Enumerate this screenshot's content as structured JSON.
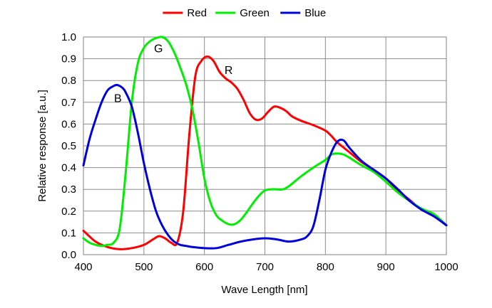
{
  "chart_data": {
    "type": "line",
    "title": "",
    "xlabel": "Wave Length [nm]",
    "ylabel": "Relative response [a.u.]",
    "xlim": [
      400,
      1000
    ],
    "ylim": [
      0.0,
      1.0
    ],
    "xticks": [
      400,
      500,
      600,
      700,
      800,
      900,
      1000
    ],
    "yticks": [
      0.0,
      0.1,
      0.2,
      0.3,
      0.4,
      0.5,
      0.6,
      0.7,
      0.8,
      0.9,
      1.0
    ],
    "xtick_labels": [
      "400",
      "500",
      "600",
      "700",
      "800",
      "900",
      "1000"
    ],
    "ytick_labels": [
      "0.0",
      "0.1",
      "0.2",
      "0.3",
      "0.4",
      "0.5",
      "0.6",
      "0.7",
      "0.8",
      "0.9",
      "1.0"
    ],
    "grid": true,
    "legend_position": "top-center",
    "series": [
      {
        "name": "Red",
        "color": "#ff0000",
        "label": "R",
        "label_at": [
          640,
          0.85
        ],
        "x": [
          400,
          420,
          440,
          460,
          480,
          500,
          515,
          525,
          535,
          545,
          555,
          565,
          575,
          585,
          595,
          605,
          615,
          625,
          635,
          645,
          655,
          665,
          675,
          685,
          695,
          705,
          715,
          725,
          735,
          745,
          760,
          780,
          800,
          810,
          820,
          840,
          860,
          880,
          900,
          920,
          940,
          960,
          980,
          1000
        ],
        "y": [
          0.11,
          0.06,
          0.035,
          0.025,
          0.03,
          0.045,
          0.07,
          0.085,
          0.075,
          0.055,
          0.055,
          0.2,
          0.55,
          0.82,
          0.89,
          0.91,
          0.89,
          0.84,
          0.81,
          0.79,
          0.76,
          0.71,
          0.65,
          0.62,
          0.625,
          0.655,
          0.68,
          0.675,
          0.66,
          0.635,
          0.615,
          0.595,
          0.57,
          0.545,
          0.515,
          0.47,
          0.425,
          0.39,
          0.35,
          0.295,
          0.25,
          0.205,
          0.18,
          0.135
        ]
      },
      {
        "name": "Green",
        "color": "#00ee00",
        "label": "G",
        "label_at": [
          524,
          0.95
        ],
        "x": [
          400,
          410,
          420,
          430,
          440,
          450,
          460,
          470,
          480,
          490,
          500,
          510,
          520,
          530,
          540,
          550,
          560,
          570,
          580,
          590,
          600,
          610,
          620,
          630,
          640,
          650,
          660,
          670,
          680,
          690,
          700,
          710,
          720,
          730,
          740,
          760,
          780,
          800,
          810,
          820,
          830,
          840,
          860,
          880,
          900,
          920,
          940,
          960,
          980,
          1000
        ],
        "y": [
          0.075,
          0.055,
          0.045,
          0.04,
          0.045,
          0.055,
          0.12,
          0.38,
          0.7,
          0.88,
          0.95,
          0.98,
          0.995,
          1.0,
          0.98,
          0.93,
          0.86,
          0.78,
          0.67,
          0.52,
          0.35,
          0.24,
          0.18,
          0.155,
          0.14,
          0.14,
          0.16,
          0.195,
          0.235,
          0.27,
          0.295,
          0.3,
          0.3,
          0.3,
          0.315,
          0.36,
          0.4,
          0.435,
          0.46,
          0.465,
          0.46,
          0.445,
          0.41,
          0.38,
          0.335,
          0.285,
          0.245,
          0.21,
          0.185,
          0.135
        ]
      },
      {
        "name": "Blue",
        "color": "#0000dd",
        "label": "B",
        "label_at": [
          457,
          0.72
        ],
        "x": [
          400,
          410,
          420,
          430,
          440,
          450,
          455,
          460,
          465,
          470,
          480,
          490,
          500,
          510,
          520,
          530,
          540,
          550,
          560,
          570,
          580,
          600,
          620,
          640,
          660,
          680,
          700,
          720,
          740,
          760,
          770,
          780,
          790,
          800,
          810,
          820,
          830,
          840,
          860,
          880,
          900,
          920,
          940,
          960,
          980,
          1000
        ],
        "y": [
          0.41,
          0.53,
          0.62,
          0.7,
          0.755,
          0.775,
          0.78,
          0.775,
          0.765,
          0.745,
          0.68,
          0.56,
          0.42,
          0.3,
          0.2,
          0.135,
          0.09,
          0.06,
          0.045,
          0.04,
          0.035,
          0.03,
          0.03,
          0.045,
          0.06,
          0.07,
          0.075,
          0.07,
          0.06,
          0.07,
          0.085,
          0.13,
          0.25,
          0.39,
          0.47,
          0.52,
          0.525,
          0.49,
          0.43,
          0.39,
          0.35,
          0.3,
          0.245,
          0.205,
          0.175,
          0.135
        ]
      }
    ]
  }
}
